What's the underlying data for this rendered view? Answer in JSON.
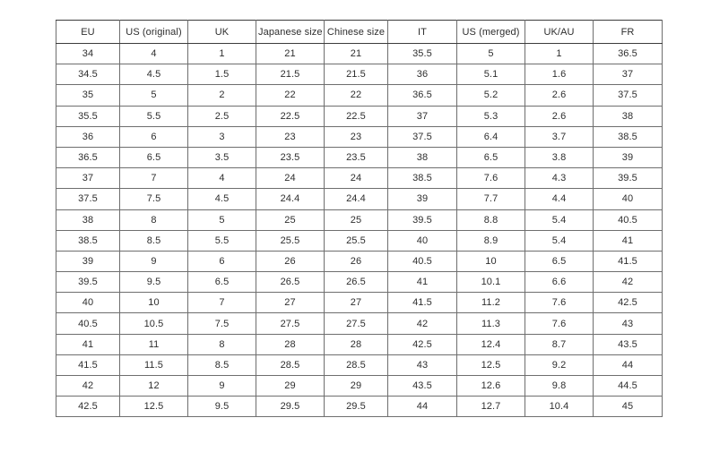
{
  "page": {
    "background_color": "#ffffff",
    "text_color": "#2e2e2e",
    "border_color_outer": "#3c3c3c",
    "border_color_inner": "#6e6e6e"
  },
  "table": {
    "name": "shoe-size-conversion-table",
    "columns": [
      "EU",
      "US (original)",
      "UK",
      "Japanese size",
      "Chinese size",
      "IT",
      "US (merged)",
      "UK/AU",
      "FR"
    ],
    "rows": [
      [
        "34",
        "4",
        "1",
        "21",
        "21",
        "35.5",
        "5",
        "1",
        "36.5"
      ],
      [
        "34.5",
        "4.5",
        "1.5",
        "21.5",
        "21.5",
        "36",
        "5.1",
        "1.6",
        "37"
      ],
      [
        "35",
        "5",
        "2",
        "22",
        "22",
        "36.5",
        "5.2",
        "2.6",
        "37.5"
      ],
      [
        "35.5",
        "5.5",
        "2.5",
        "22.5",
        "22.5",
        "37",
        "5.3",
        "2.6",
        "38"
      ],
      [
        "36",
        "6",
        "3",
        "23",
        "23",
        "37.5",
        "6.4",
        "3.7",
        "38.5"
      ],
      [
        "36.5",
        "6.5",
        "3.5",
        "23.5",
        "23.5",
        "38",
        "6.5",
        "3.8",
        "39"
      ],
      [
        "37",
        "7",
        "4",
        "24",
        "24",
        "38.5",
        "7.6",
        "4.3",
        "39.5"
      ],
      [
        "37.5",
        "7.5",
        "4.5",
        "24.4",
        "24.4",
        "39",
        "7.7",
        "4.4",
        "40"
      ],
      [
        "38",
        "8",
        "5",
        "25",
        "25",
        "39.5",
        "8.8",
        "5.4",
        "40.5"
      ],
      [
        "38.5",
        "8.5",
        "5.5",
        "25.5",
        "25.5",
        "40",
        "8.9",
        "5.4",
        "41"
      ],
      [
        "39",
        "9",
        "6",
        "26",
        "26",
        "40.5",
        "10",
        "6.5",
        "41.5"
      ],
      [
        "39.5",
        "9.5",
        "6.5",
        "26.5",
        "26.5",
        "41",
        "10.1",
        "6.6",
        "42"
      ],
      [
        "40",
        "10",
        "7",
        "27",
        "27",
        "41.5",
        "11.2",
        "7.6",
        "42.5"
      ],
      [
        "40.5",
        "10.5",
        "7.5",
        "27.5",
        "27.5",
        "42",
        "11.3",
        "7.6",
        "43"
      ],
      [
        "41",
        "11",
        "8",
        "28",
        "28",
        "42.5",
        "12.4",
        "8.7",
        "43.5"
      ],
      [
        "41.5",
        "11.5",
        "8.5",
        "28.5",
        "28.5",
        "43",
        "12.5",
        "9.2",
        "44"
      ],
      [
        "42",
        "12",
        "9",
        "29",
        "29",
        "43.5",
        "12.6",
        "9.8",
        "44.5"
      ],
      [
        "42.5",
        "12.5",
        "9.5",
        "29.5",
        "29.5",
        "44",
        "12.7",
        "10.4",
        "45"
      ]
    ]
  }
}
